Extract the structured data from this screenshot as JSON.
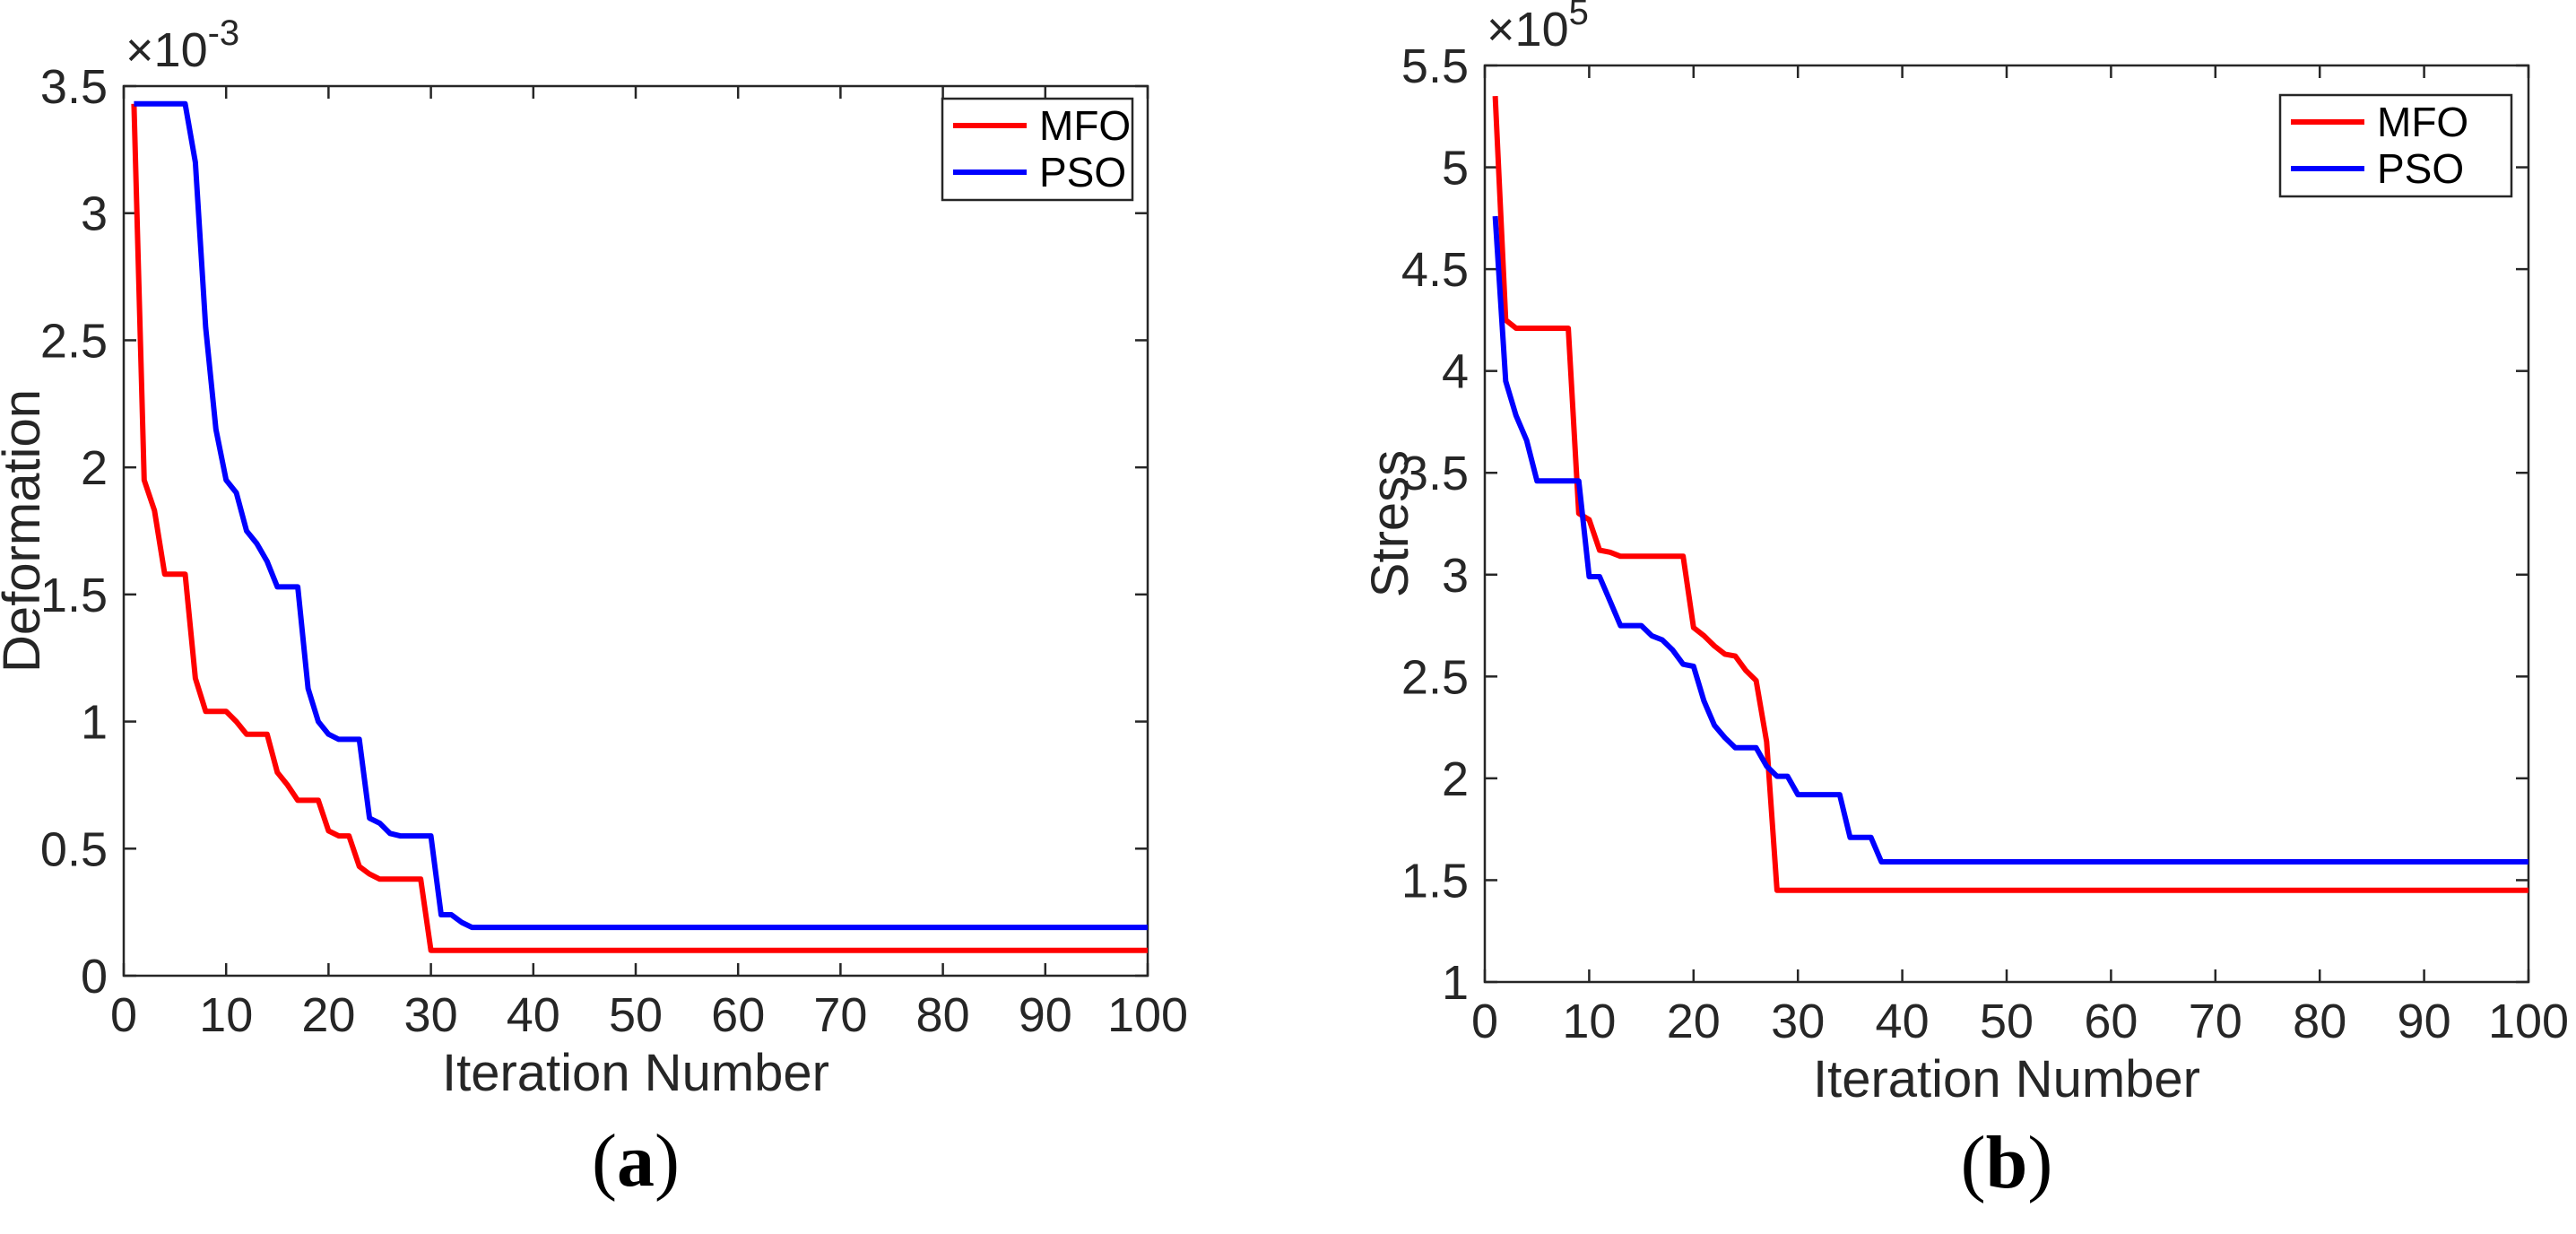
{
  "chart_data": [
    {
      "type": "line",
      "panel_label": "(a)",
      "caption": {
        "open": "(",
        "letter": "a",
        "close": ")"
      },
      "xlabel": "Iteration Number",
      "ylabel": "Deformation",
      "y_exponent": {
        "base": "×10",
        "power": "-3"
      },
      "xlim": [
        0,
        100
      ],
      "ylim": [
        0,
        3.5
      ],
      "xticks": [
        0,
        10,
        20,
        30,
        40,
        50,
        60,
        70,
        80,
        90,
        100
      ],
      "xtick_labels": [
        "0",
        "10",
        "20",
        "30",
        "40",
        "50",
        "60",
        "70",
        "80",
        "90",
        "100"
      ],
      "yticks": [
        0,
        0.5,
        1,
        1.5,
        2,
        2.5,
        3,
        3.5
      ],
      "ytick_labels": [
        "0",
        "0.5",
        "1",
        "1.5",
        "2",
        "2.5",
        "3",
        "3.5"
      ],
      "legend_position": "top-right",
      "series": [
        {
          "name": "MFO",
          "color": "#ff0000",
          "points": [
            [
              1,
              3.43
            ],
            [
              2,
              1.95
            ],
            [
              3,
              1.83
            ],
            [
              4,
              1.58
            ],
            [
              5,
              1.58
            ],
            [
              6,
              1.58
            ],
            [
              7,
              1.17
            ],
            [
              8,
              1.04
            ],
            [
              9,
              1.04
            ],
            [
              10,
              1.04
            ],
            [
              11,
              1.0
            ],
            [
              12,
              0.95
            ],
            [
              13,
              0.95
            ],
            [
              14,
              0.95
            ],
            [
              15,
              0.8
            ],
            [
              16,
              0.75
            ],
            [
              17,
              0.69
            ],
            [
              18,
              0.69
            ],
            [
              19,
              0.69
            ],
            [
              20,
              0.57
            ],
            [
              21,
              0.55
            ],
            [
              22,
              0.55
            ],
            [
              23,
              0.43
            ],
            [
              24,
              0.4
            ],
            [
              25,
              0.38
            ],
            [
              26,
              0.38
            ],
            [
              27,
              0.38
            ],
            [
              28,
              0.38
            ],
            [
              29,
              0.38
            ],
            [
              30,
              0.1
            ],
            [
              31,
              0.1
            ],
            [
              100,
              0.1
            ]
          ]
        },
        {
          "name": "PSO",
          "color": "#0000ff",
          "points": [
            [
              1,
              3.43
            ],
            [
              2,
              3.43
            ],
            [
              3,
              3.43
            ],
            [
              4,
              3.43
            ],
            [
              5,
              3.43
            ],
            [
              6,
              3.43
            ],
            [
              7,
              3.2
            ],
            [
              8,
              2.55
            ],
            [
              9,
              2.15
            ],
            [
              10,
              1.95
            ],
            [
              11,
              1.9
            ],
            [
              12,
              1.75
            ],
            [
              13,
              1.7
            ],
            [
              14,
              1.63
            ],
            [
              15,
              1.53
            ],
            [
              16,
              1.53
            ],
            [
              17,
              1.53
            ],
            [
              18,
              1.13
            ],
            [
              19,
              1.0
            ],
            [
              20,
              0.95
            ],
            [
              21,
              0.93
            ],
            [
              22,
              0.93
            ],
            [
              23,
              0.93
            ],
            [
              24,
              0.62
            ],
            [
              25,
              0.6
            ],
            [
              26,
              0.56
            ],
            [
              27,
              0.55
            ],
            [
              28,
              0.55
            ],
            [
              29,
              0.55
            ],
            [
              30,
              0.55
            ],
            [
              31,
              0.24
            ],
            [
              32,
              0.24
            ],
            [
              33,
              0.21
            ],
            [
              34,
              0.19
            ],
            [
              35,
              0.19
            ],
            [
              100,
              0.19
            ]
          ]
        }
      ]
    },
    {
      "type": "line",
      "panel_label": "(b)",
      "caption": {
        "open": "(",
        "letter": "b",
        "close": ")"
      },
      "xlabel": "Iteration Number",
      "ylabel": "Stress",
      "y_exponent": {
        "base": "×10",
        "power": "5"
      },
      "xlim": [
        0,
        100
      ],
      "ylim": [
        1,
        5.5
      ],
      "xticks": [
        0,
        10,
        20,
        30,
        40,
        50,
        60,
        70,
        80,
        90,
        100
      ],
      "xtick_labels": [
        "0",
        "10",
        "20",
        "30",
        "40",
        "50",
        "60",
        "70",
        "80",
        "90",
        "100"
      ],
      "yticks": [
        1,
        1.5,
        2,
        2.5,
        3,
        3.5,
        4,
        4.5,
        5,
        5.5
      ],
      "ytick_labels": [
        "1",
        "1.5",
        "2",
        "2.5",
        "3",
        "3.5",
        "4",
        "4.5",
        "5",
        "5.5"
      ],
      "legend_position": "top-right",
      "series": [
        {
          "name": "MFO",
          "color": "#ff0000",
          "points": [
            [
              1,
              5.35
            ],
            [
              2,
              4.25
            ],
            [
              3,
              4.21
            ],
            [
              4,
              4.21
            ],
            [
              5,
              4.21
            ],
            [
              6,
              4.21
            ],
            [
              7,
              4.21
            ],
            [
              8,
              4.21
            ],
            [
              9,
              3.3
            ],
            [
              10,
              3.27
            ],
            [
              11,
              3.12
            ],
            [
              12,
              3.11
            ],
            [
              13,
              3.09
            ],
            [
              14,
              3.09
            ],
            [
              15,
              3.09
            ],
            [
              16,
              3.09
            ],
            [
              17,
              3.09
            ],
            [
              18,
              3.09
            ],
            [
              19,
              3.09
            ],
            [
              20,
              2.74
            ],
            [
              21,
              2.7
            ],
            [
              22,
              2.65
            ],
            [
              23,
              2.61
            ],
            [
              24,
              2.6
            ],
            [
              25,
              2.53
            ],
            [
              26,
              2.48
            ],
            [
              27,
              2.18
            ],
            [
              28,
              1.45
            ],
            [
              29,
              1.45
            ],
            [
              100,
              1.45
            ]
          ]
        },
        {
          "name": "PSO",
          "color": "#0000ff",
          "points": [
            [
              1,
              4.76
            ],
            [
              2,
              3.95
            ],
            [
              3,
              3.78
            ],
            [
              4,
              3.66
            ],
            [
              5,
              3.46
            ],
            [
              6,
              3.46
            ],
            [
              7,
              3.46
            ],
            [
              8,
              3.46
            ],
            [
              9,
              3.46
            ],
            [
              10,
              2.99
            ],
            [
              11,
              2.99
            ],
            [
              12,
              2.87
            ],
            [
              13,
              2.75
            ],
            [
              14,
              2.75
            ],
            [
              15,
              2.75
            ],
            [
              16,
              2.7
            ],
            [
              17,
              2.68
            ],
            [
              18,
              2.63
            ],
            [
              19,
              2.56
            ],
            [
              20,
              2.55
            ],
            [
              21,
              2.38
            ],
            [
              22,
              2.26
            ],
            [
              23,
              2.2
            ],
            [
              24,
              2.15
            ],
            [
              25,
              2.15
            ],
            [
              26,
              2.15
            ],
            [
              27,
              2.06
            ],
            [
              28,
              2.01
            ],
            [
              29,
              2.01
            ],
            [
              30,
              1.92
            ],
            [
              31,
              1.92
            ],
            [
              32,
              1.92
            ],
            [
              33,
              1.92
            ],
            [
              34,
              1.92
            ],
            [
              35,
              1.71
            ],
            [
              36,
              1.71
            ],
            [
              37,
              1.71
            ],
            [
              38,
              1.59
            ],
            [
              39,
              1.59
            ],
            [
              100,
              1.59
            ]
          ]
        }
      ]
    }
  ]
}
